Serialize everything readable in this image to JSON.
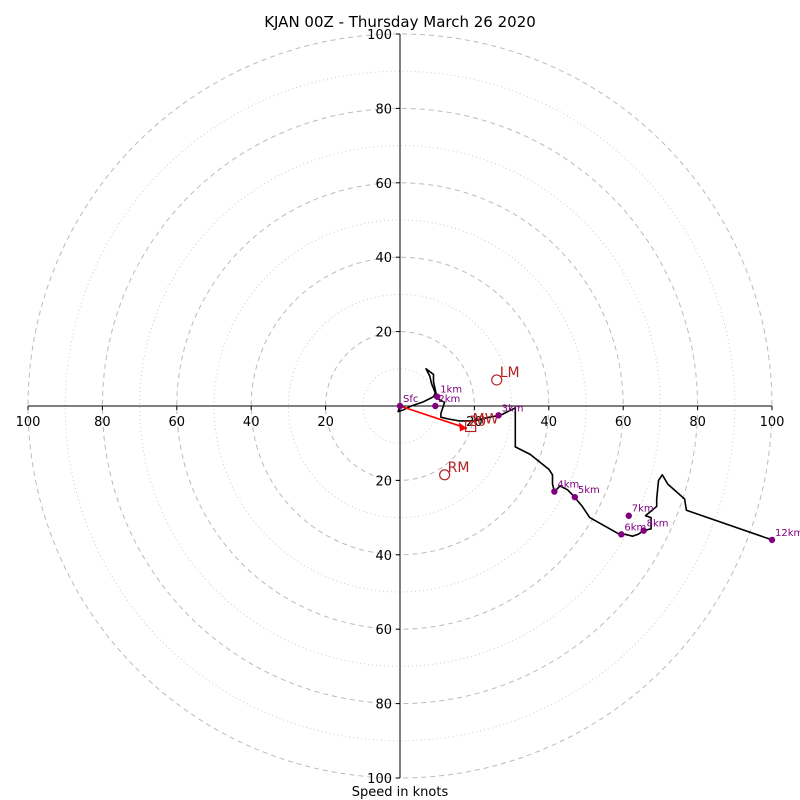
{
  "chart_data": {
    "type": "hodograph",
    "title": "KJAN 00Z - Thursday March 26 2020",
    "xlabel": "Speed in knots",
    "ylabel": "",
    "range": [
      -100,
      100
    ],
    "ring_values_major": [
      20,
      40,
      60,
      80,
      100
    ],
    "ring_values_minor": [
      10,
      30,
      50,
      70,
      90
    ],
    "tick_labels_x": [
      "100",
      "80",
      "60",
      "40",
      "20",
      "20",
      "40",
      "60",
      "80",
      "100"
    ],
    "tick_values_x": [
      -100,
      -80,
      -60,
      -40,
      -20,
      20,
      40,
      60,
      80,
      100
    ],
    "tick_labels_y": [
      "100",
      "80",
      "60",
      "40",
      "20",
      "20",
      "40",
      "60",
      "80",
      "100"
    ],
    "tick_values_y": [
      100,
      80,
      60,
      40,
      20,
      -20,
      -40,
      -60,
      -80,
      -100
    ],
    "trace": [
      [
        0,
        0
      ],
      [
        -0.5,
        -1.5
      ],
      [
        1,
        -1
      ],
      [
        3,
        0
      ],
      [
        6,
        1
      ],
      [
        8,
        2
      ],
      [
        9,
        2.5
      ],
      [
        9.5,
        3.5
      ],
      [
        8.5,
        6
      ],
      [
        8,
        8
      ],
      [
        7,
        10
      ],
      [
        9,
        8.5
      ],
      [
        9,
        6.5
      ],
      [
        10,
        2
      ],
      [
        12,
        1
      ],
      [
        11,
        -2
      ],
      [
        11,
        -3
      ],
      [
        13,
        -3.5
      ],
      [
        16,
        -4
      ],
      [
        20,
        -4
      ],
      [
        24,
        -3
      ],
      [
        27,
        -2.5
      ],
      [
        28,
        -2
      ],
      [
        31,
        -0.5
      ],
      [
        31,
        -5
      ],
      [
        31,
        -11
      ],
      [
        35,
        -13
      ],
      [
        40,
        -17
      ],
      [
        41,
        -18.5
      ],
      [
        41,
        -21
      ],
      [
        41.5,
        -23
      ],
      [
        43,
        -21.5
      ],
      [
        45,
        -22.5
      ],
      [
        46.5,
        -24
      ],
      [
        49,
        -27
      ],
      [
        51,
        -30
      ],
      [
        59,
        -34.5
      ],
      [
        60.5,
        -34.5
      ],
      [
        62.5,
        -35
      ],
      [
        64,
        -34.5
      ],
      [
        65.5,
        -33.5
      ],
      [
        67.5,
        -33
      ],
      [
        67.5,
        -30
      ],
      [
        66,
        -29.5
      ],
      [
        69,
        -27
      ],
      [
        69,
        -25
      ],
      [
        69.5,
        -20
      ],
      [
        70.5,
        -18.5
      ],
      [
        72,
        -21
      ],
      [
        76.5,
        -25
      ],
      [
        77,
        -28
      ],
      [
        100,
        -36
      ]
    ],
    "height_markers": [
      {
        "label": "Sfc",
        "x": 0,
        "y": 0
      },
      {
        "label": "1km",
        "x": 10,
        "y": 2.5
      },
      {
        "label": "2km",
        "x": 9.5,
        "y": 0
      },
      {
        "label": "3km",
        "x": 26.5,
        "y": -2.5
      },
      {
        "label": "4km",
        "x": 41.5,
        "y": -23
      },
      {
        "label": "5km",
        "x": 47,
        "y": -24.5
      },
      {
        "label": "6km",
        "x": 59.5,
        "y": -34.5
      },
      {
        "label": "7km",
        "x": 61.5,
        "y": -29.5
      },
      {
        "label": "8km",
        "x": 65.5,
        "y": -33.5
      },
      {
        "label": "12km",
        "x": 100,
        "y": -36
      }
    ],
    "storm_motion": [
      {
        "label": "LM",
        "x": 26,
        "y": 7,
        "marker": "circle"
      },
      {
        "label": "RM",
        "x": 12,
        "y": -18.5,
        "marker": "circle"
      },
      {
        "label": "MW",
        "x": 19,
        "y": -5.5,
        "marker": "square"
      }
    ],
    "shear_vector": {
      "from": [
        0,
        0
      ],
      "to": [
        18,
        -6
      ]
    },
    "extra_label": {
      "text": "20",
      "x": 20,
      "y": -4
    },
    "colors": {
      "trace": "#000000",
      "marker": "#800080",
      "storm": "#b22222",
      "shear": "#ff0000",
      "grid": "#bbbbbb"
    },
    "grid": true
  }
}
